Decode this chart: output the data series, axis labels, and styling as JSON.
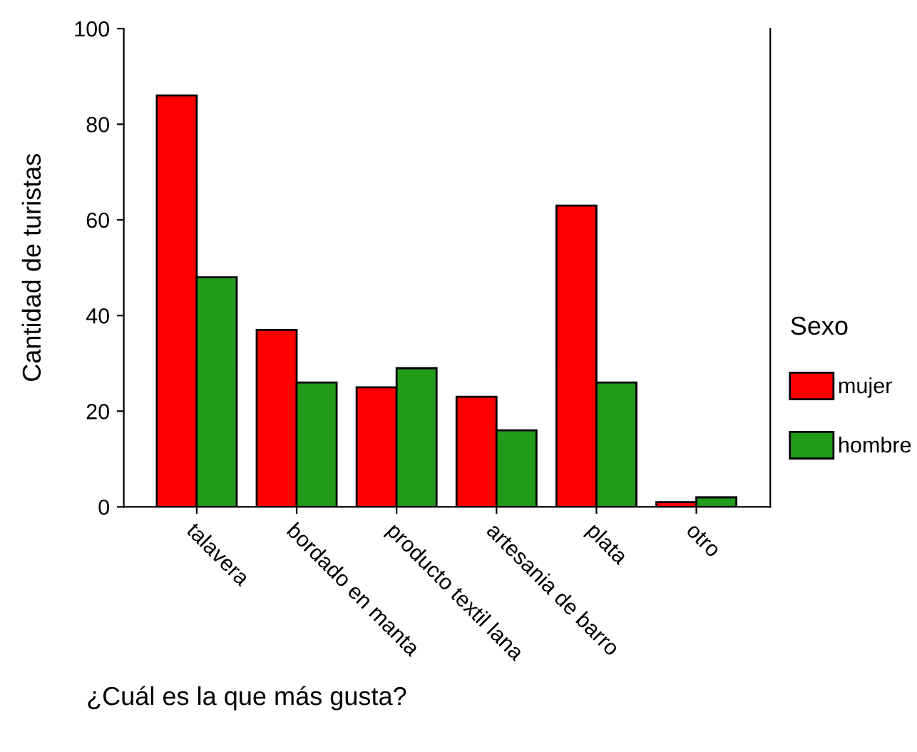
{
  "chart_data": {
    "type": "bar",
    "xlabel": "¿Cuál es la que más gusta?",
    "ylabel": "Cantidad de turistas",
    "legend_title": "Sexo",
    "categories": [
      "talavera",
      "bordado en manta",
      "producto textil lana",
      "artesania de barro",
      "plata",
      "otro"
    ],
    "series": [
      {
        "name": "mujer",
        "color": "#ff0000",
        "values": [
          86,
          37,
          25,
          23,
          63,
          1
        ]
      },
      {
        "name": "hombre",
        "color": "#229a1a",
        "values": [
          48,
          26,
          29,
          16,
          26,
          2
        ]
      }
    ],
    "ylim": [
      0,
      100
    ],
    "yticks": [
      0,
      20,
      40,
      60,
      80,
      100
    ],
    "grid": false,
    "legend": "right"
  }
}
